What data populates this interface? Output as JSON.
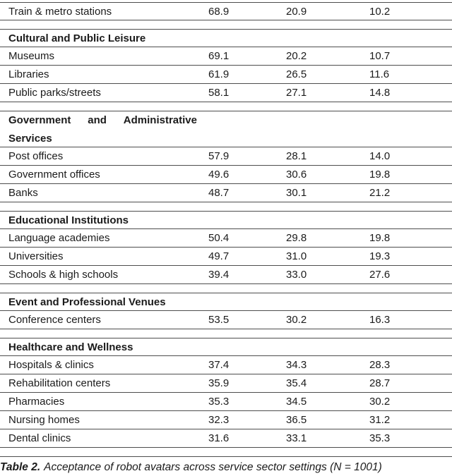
{
  "document": {
    "background_color": "#ffffff",
    "text_color": "#1b1b1b",
    "rule_color": "#4d4d4d"
  },
  "table": {
    "sections": [
      {
        "rows": [
          {
            "label": "Train & metro stations",
            "values": [
              "68.9",
              "20.9",
              "10.2"
            ]
          }
        ]
      },
      {
        "header": "Cultural and Public Leisure",
        "rows": [
          {
            "label": "Museums",
            "values": [
              "69.1",
              "20.2",
              "10.7"
            ]
          },
          {
            "label": "Libraries",
            "values": [
              "61.9",
              "26.5",
              "11.6"
            ]
          },
          {
            "label": "Public parks/streets",
            "values": [
              "58.1",
              "27.1",
              "14.8"
            ]
          }
        ]
      },
      {
        "header": "Government and Administrative Services",
        "header_line1_words": [
          "Government",
          "and",
          "Administrative"
        ],
        "header_line2": "Services",
        "rows": [
          {
            "label": "Post offices",
            "values": [
              "57.9",
              "28.1",
              "14.0"
            ]
          },
          {
            "label": "Government offices",
            "values": [
              "49.6",
              "30.6",
              "19.8"
            ]
          },
          {
            "label": "Banks",
            "values": [
              "48.7",
              "30.1",
              "21.2"
            ]
          }
        ]
      },
      {
        "header": "Educational Institutions",
        "rows": [
          {
            "label": "Language academies",
            "values": [
              "50.4",
              "29.8",
              "19.8"
            ]
          },
          {
            "label": "Universities",
            "values": [
              "49.7",
              "31.0",
              "19.3"
            ]
          },
          {
            "label": "Schools & high schools",
            "values": [
              "39.4",
              "33.0",
              "27.6"
            ]
          }
        ]
      },
      {
        "header": "Event and Professional Venues",
        "rows": [
          {
            "label": "Conference centers",
            "values": [
              "53.5",
              "30.2",
              "16.3"
            ]
          }
        ]
      },
      {
        "header": "Healthcare and Wellness",
        "rows": [
          {
            "label": "Hospitals & clinics",
            "values": [
              "37.4",
              "34.3",
              "28.3"
            ]
          },
          {
            "label": "Rehabilitation centers",
            "values": [
              "35.9",
              "35.4",
              "28.7"
            ]
          },
          {
            "label": "Pharmacies",
            "values": [
              "35.3",
              "34.5",
              "30.2"
            ]
          },
          {
            "label": "Nursing homes",
            "values": [
              "32.3",
              "36.5",
              "31.2"
            ]
          },
          {
            "label": "Dental clinics",
            "values": [
              "31.6",
              "33.1",
              "35.3"
            ]
          }
        ]
      }
    ],
    "caption": {
      "label": "Table 2.",
      "text": "Acceptance of robot avatars across service sector settings (N = 1001)"
    }
  }
}
